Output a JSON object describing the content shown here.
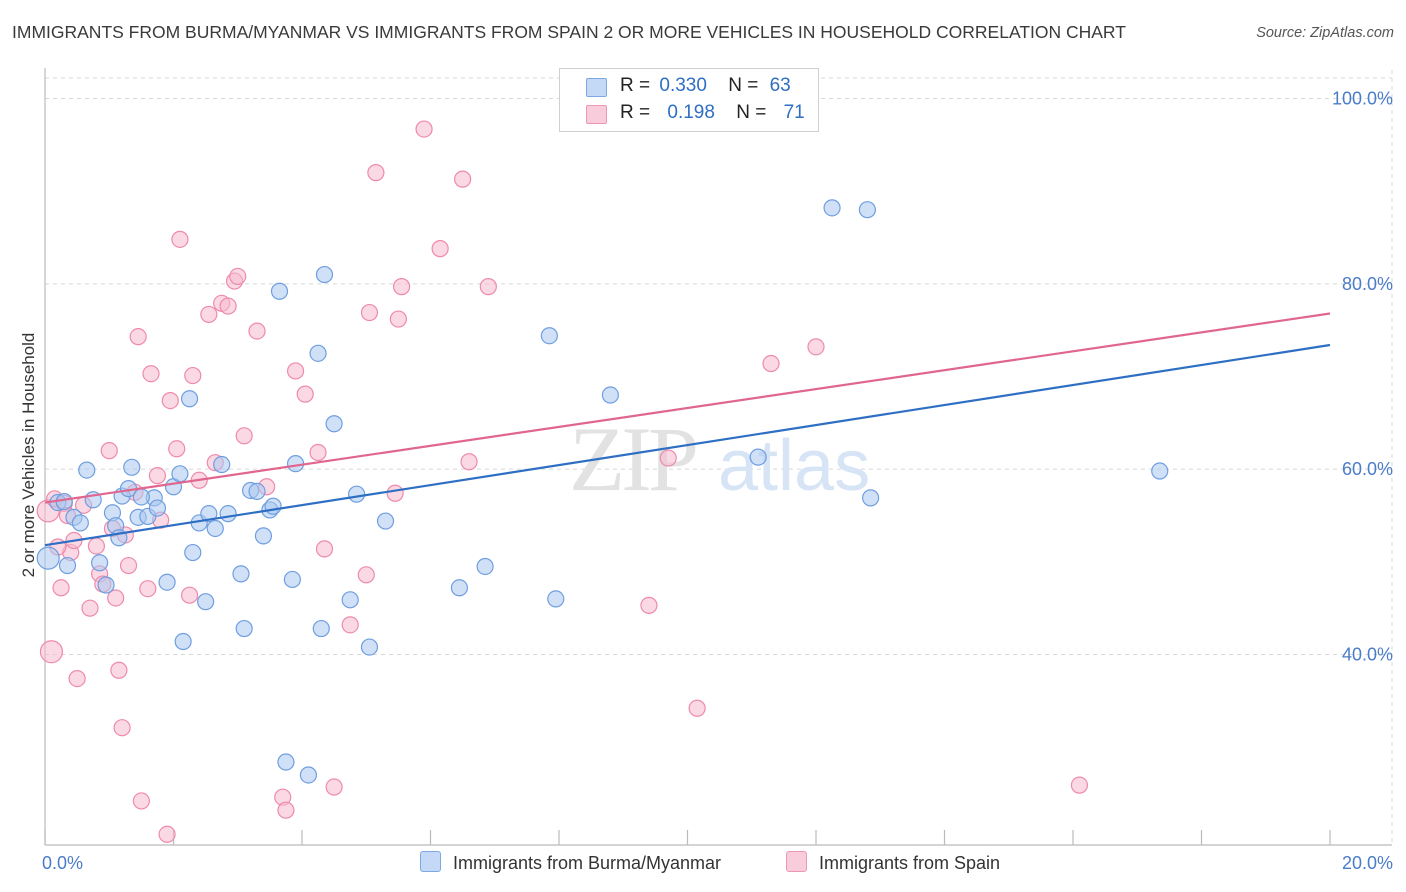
{
  "title": "IMMIGRANTS FROM BURMA/MYANMAR VS IMMIGRANTS FROM SPAIN 2 OR MORE VEHICLES IN HOUSEHOLD CORRELATION CHART",
  "source": "Source: ZipAtlas.com",
  "watermark": {
    "zip": "ZIP",
    "atlas": "atlas"
  },
  "legend": {
    "r_label": "R =",
    "n_label": "N =",
    "rows": [
      {
        "r": "0.330",
        "n": "63"
      },
      {
        "r": "0.198",
        "n": "71"
      }
    ]
  },
  "colors": {
    "blue_fill": "#a9c8f0",
    "blue_stroke": "#6f9ee0",
    "blue_line": "#2e6fc4",
    "pink_fill": "#f7b9ce",
    "pink_stroke": "#ee8aab",
    "pink_line": "#e0668e",
    "grid": "#d8d8d8",
    "tick_text": "#4a7cc9"
  },
  "chart_data": {
    "type": "scatter",
    "title": "IMMIGRANTS FROM BURMA/MYANMAR VS IMMIGRANTS FROM SPAIN 2 OR MORE VEHICLES IN HOUSEHOLD CORRELATION CHART",
    "xlabel": "",
    "ylabel": "2 or more Vehicles in Household",
    "xlim": [
      0,
      20
    ],
    "ylim": [
      20,
      100
    ],
    "x_ticks": [
      "0.0%",
      "20.0%"
    ],
    "y_ticks": [
      {
        "value": 40,
        "label": "40.0%"
      },
      {
        "value": 60,
        "label": "60.0%"
      },
      {
        "value": 80,
        "label": "80.0%"
      },
      {
        "value": 100,
        "label": "100.0%"
      }
    ],
    "legend_position": "top-center",
    "series": [
      {
        "name": "Immigrants from Burma/Myanmar",
        "color": "blue",
        "r": 0.33,
        "n": 63,
        "trend": {
          "x0": 0,
          "y0": 51.8,
          "x1": 20,
          "y1": 73.4
        },
        "points": [
          [
            0.05,
            50.4
          ],
          [
            0.2,
            56.4
          ],
          [
            0.3,
            56.5
          ],
          [
            0.35,
            49.6
          ],
          [
            0.45,
            54.8
          ],
          [
            0.55,
            54.2
          ],
          [
            0.65,
            59.9
          ],
          [
            0.75,
            56.7
          ],
          [
            0.85,
            49.9
          ],
          [
            0.95,
            47.5
          ],
          [
            1.05,
            55.3
          ],
          [
            1.1,
            53.9
          ],
          [
            1.15,
            52.6
          ],
          [
            1.2,
            57.1
          ],
          [
            1.3,
            57.9
          ],
          [
            1.35,
            60.2
          ],
          [
            1.45,
            54.8
          ],
          [
            1.6,
            54.9
          ],
          [
            1.7,
            56.9
          ],
          [
            1.75,
            55.8
          ],
          [
            1.9,
            47.8
          ],
          [
            2.0,
            58.1
          ],
          [
            2.1,
            59.5
          ],
          [
            2.15,
            41.4
          ],
          [
            2.25,
            67.6
          ],
          [
            2.3,
            51.0
          ],
          [
            2.4,
            54.2
          ],
          [
            2.5,
            45.7
          ],
          [
            2.55,
            55.2
          ],
          [
            2.65,
            53.6
          ],
          [
            2.75,
            60.5
          ],
          [
            2.85,
            55.2
          ],
          [
            3.05,
            48.7
          ],
          [
            3.1,
            42.8
          ],
          [
            3.2,
            57.7
          ],
          [
            3.3,
            57.6
          ],
          [
            3.4,
            52.8
          ],
          [
            3.5,
            55.6
          ],
          [
            3.55,
            56.0
          ],
          [
            3.65,
            79.2
          ],
          [
            3.75,
            28.4
          ],
          [
            3.85,
            48.1
          ],
          [
            3.9,
            60.6
          ],
          [
            4.1,
            27.0
          ],
          [
            4.25,
            72.5
          ],
          [
            4.3,
            42.8
          ],
          [
            4.35,
            81.0
          ],
          [
            4.5,
            64.9
          ],
          [
            4.75,
            45.9
          ],
          [
            4.85,
            57.3
          ],
          [
            5.05,
            40.8
          ],
          [
            5.3,
            54.4
          ],
          [
            6.45,
            47.2
          ],
          [
            6.85,
            49.5
          ],
          [
            7.85,
            74.4
          ],
          [
            7.95,
            46.0
          ],
          [
            8.8,
            68.0
          ],
          [
            11.1,
            61.3
          ],
          [
            12.25,
            88.2
          ],
          [
            12.85,
            56.9
          ],
          [
            12.8,
            88.0
          ],
          [
            17.35,
            59.8
          ],
          [
            1.5,
            57.0
          ]
        ]
      },
      {
        "name": "Immigrants from Spain",
        "color": "pink",
        "r": 0.198,
        "n": 71,
        "trend": {
          "x0": 0,
          "y0": 56.4,
          "x1": 20,
          "y1": 76.8
        },
        "points": [
          [
            0.05,
            55.5
          ],
          [
            0.1,
            40.3
          ],
          [
            0.15,
            56.8
          ],
          [
            0.25,
            47.2
          ],
          [
            0.3,
            56.3
          ],
          [
            0.4,
            51.0
          ],
          [
            0.45,
            52.3
          ],
          [
            0.5,
            37.4
          ],
          [
            0.6,
            56.1
          ],
          [
            0.7,
            45.0
          ],
          [
            0.8,
            51.7
          ],
          [
            0.85,
            48.7
          ],
          [
            0.9,
            47.6
          ],
          [
            1.0,
            62.0
          ],
          [
            1.05,
            53.6
          ],
          [
            1.1,
            46.1
          ],
          [
            1.15,
            38.3
          ],
          [
            1.2,
            32.1
          ],
          [
            1.25,
            52.9
          ],
          [
            1.3,
            49.6
          ],
          [
            1.4,
            57.5
          ],
          [
            1.45,
            74.3
          ],
          [
            1.5,
            24.2
          ],
          [
            1.6,
            47.1
          ],
          [
            1.65,
            70.3
          ],
          [
            1.75,
            59.3
          ],
          [
            1.8,
            54.5
          ],
          [
            1.9,
            20.6
          ],
          [
            1.95,
            67.4
          ],
          [
            2.05,
            62.2
          ],
          [
            2.1,
            84.8
          ],
          [
            2.25,
            46.4
          ],
          [
            2.3,
            70.1
          ],
          [
            2.4,
            58.8
          ],
          [
            2.55,
            76.7
          ],
          [
            2.65,
            60.7
          ],
          [
            2.75,
            77.9
          ],
          [
            2.85,
            77.6
          ],
          [
            2.95,
            80.3
          ],
          [
            3.0,
            80.8
          ],
          [
            3.1,
            63.6
          ],
          [
            3.3,
            74.9
          ],
          [
            3.45,
            58.1
          ],
          [
            3.7,
            24.6
          ],
          [
            3.75,
            23.2
          ],
          [
            3.9,
            70.6
          ],
          [
            4.05,
            68.1
          ],
          [
            4.25,
            61.8
          ],
          [
            4.35,
            51.4
          ],
          [
            4.5,
            25.7
          ],
          [
            4.75,
            43.2
          ],
          [
            5.0,
            48.6
          ],
          [
            5.05,
            76.9
          ],
          [
            5.15,
            92.0
          ],
          [
            5.45,
            57.4
          ],
          [
            5.55,
            79.7
          ],
          [
            5.5,
            76.2
          ],
          [
            5.9,
            96.7
          ],
          [
            6.15,
            83.8
          ],
          [
            6.5,
            91.3
          ],
          [
            6.6,
            60.8
          ],
          [
            6.9,
            79.7
          ],
          [
            8.2,
            100.0
          ],
          [
            9.4,
            45.3
          ],
          [
            9.7,
            61.2
          ],
          [
            10.15,
            34.2
          ],
          [
            11.3,
            71.4
          ],
          [
            12.0,
            73.2
          ],
          [
            16.1,
            25.9
          ],
          [
            0.35,
            55.0
          ],
          [
            0.2,
            51.6
          ]
        ]
      }
    ]
  }
}
